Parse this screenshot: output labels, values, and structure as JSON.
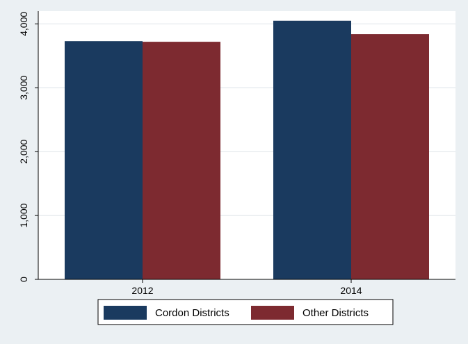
{
  "chart_data": {
    "type": "bar",
    "categories": [
      "2012",
      "2014"
    ],
    "series": [
      {
        "name": "Cordon Districts",
        "color": "#1a3a5f",
        "values": [
          3730,
          4050
        ]
      },
      {
        "name": "Other Districts",
        "color": "#7d2a30",
        "values": [
          3720,
          3840
        ]
      }
    ],
    "ylim": [
      0,
      4200
    ],
    "yticks": [
      0,
      1000,
      2000,
      3000,
      4000
    ],
    "ytick_labels": [
      "0",
      "1,000",
      "2,000",
      "3,000",
      "4,000"
    ],
    "grid": true,
    "legend_position": "bottom"
  }
}
